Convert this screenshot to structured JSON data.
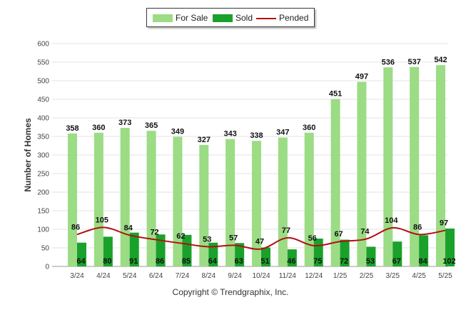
{
  "chart_data": {
    "type": "bar",
    "ylabel": "Number of Homes",
    "ylim": [
      0,
      600
    ],
    "yticks": [
      0,
      50,
      100,
      150,
      200,
      250,
      300,
      350,
      400,
      450,
      500,
      550,
      600
    ],
    "categories": [
      "3/24",
      "4/24",
      "5/24",
      "6/24",
      "7/24",
      "8/24",
      "9/24",
      "10/24",
      "11/24",
      "12/24",
      "1/25",
      "2/25",
      "3/25",
      "4/25",
      "5/25"
    ],
    "series": [
      {
        "name": "For Sale",
        "kind": "bar",
        "color": "#9bdc85",
        "values": [
          358,
          360,
          373,
          365,
          349,
          327,
          343,
          338,
          347,
          360,
          451,
          497,
          536,
          537,
          542
        ]
      },
      {
        "name": "Sold",
        "kind": "bar",
        "color": "#1aa12b",
        "values": [
          64,
          80,
          91,
          86,
          85,
          64,
          63,
          51,
          46,
          75,
          72,
          53,
          67,
          84,
          102
        ]
      },
      {
        "name": "Pended",
        "kind": "line",
        "color": "#b30f0f",
        "values": [
          86,
          105,
          84,
          72,
          62,
          53,
          57,
          47,
          77,
          56,
          67,
          74,
          104,
          86,
          97
        ]
      }
    ],
    "grid": true,
    "legend_position": "top-center",
    "copyright": "Copyright © Trendgraphix, Inc."
  }
}
